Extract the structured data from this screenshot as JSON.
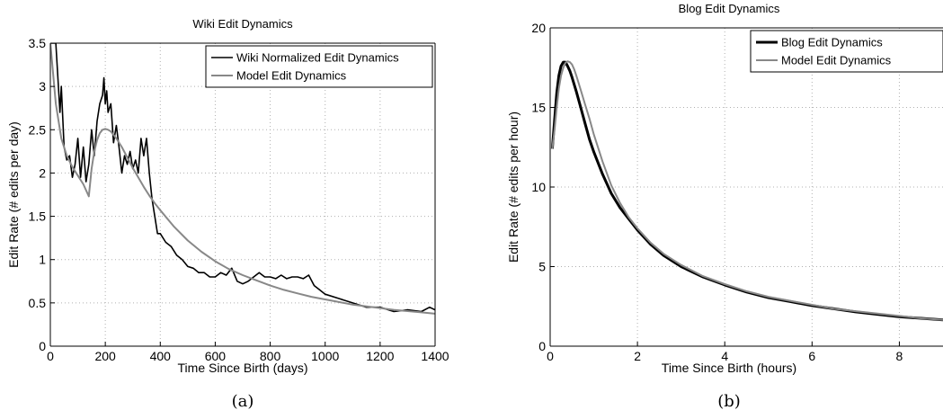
{
  "chart_data": [
    {
      "type": "line",
      "title": "Wiki Edit Dynamics",
      "xlabel": "Time Since Birth (days)",
      "ylabel": "Edit Rate (# edits per day)",
      "xlim": [
        0,
        1400
      ],
      "ylim": [
        0,
        3.5
      ],
      "xticks": [
        0,
        200,
        400,
        600,
        800,
        1000,
        1200,
        1400
      ],
      "yticks": [
        0,
        0.5,
        1,
        1.5,
        2,
        2.5,
        3,
        3.5
      ],
      "grid": true,
      "legend_position": "top-right",
      "caption": "(a)",
      "series": [
        {
          "name": "Wiki Normalized Edit Dynamics",
          "color": "#000000",
          "x": [
            0,
            20,
            35,
            40,
            50,
            60,
            70,
            80,
            90,
            100,
            110,
            120,
            130,
            140,
            150,
            160,
            170,
            180,
            190,
            195,
            200,
            205,
            210,
            220,
            230,
            240,
            250,
            260,
            270,
            280,
            290,
            300,
            310,
            320,
            330,
            340,
            350,
            360,
            370,
            380,
            390,
            400,
            420,
            440,
            460,
            480,
            500,
            520,
            540,
            560,
            580,
            600,
            620,
            640,
            660,
            680,
            700,
            720,
            740,
            760,
            780,
            800,
            820,
            840,
            860,
            880,
            900,
            920,
            940,
            960,
            980,
            1000,
            1050,
            1100,
            1150,
            1200,
            1250,
            1300,
            1350,
            1380,
            1400
          ],
          "y": [
            3.5,
            3.5,
            2.7,
            3.0,
            2.3,
            2.15,
            2.2,
            1.95,
            2.1,
            2.4,
            1.95,
            2.3,
            1.9,
            2.1,
            2.5,
            2.2,
            2.6,
            2.8,
            2.9,
            3.1,
            2.8,
            2.95,
            2.7,
            2.8,
            2.35,
            2.55,
            2.3,
            2.0,
            2.2,
            2.1,
            2.25,
            2.05,
            2.15,
            2.0,
            2.4,
            2.2,
            2.4,
            2.0,
            1.7,
            1.5,
            1.3,
            1.3,
            1.2,
            1.15,
            1.05,
            1.0,
            0.92,
            0.9,
            0.85,
            0.85,
            0.8,
            0.8,
            0.85,
            0.82,
            0.9,
            0.75,
            0.72,
            0.75,
            0.8,
            0.85,
            0.8,
            0.8,
            0.78,
            0.82,
            0.78,
            0.8,
            0.8,
            0.78,
            0.82,
            0.7,
            0.65,
            0.6,
            0.55,
            0.5,
            0.45,
            0.45,
            0.4,
            0.42,
            0.4,
            0.45,
            0.42
          ]
        },
        {
          "name": "Model Edit Dynamics",
          "color": "#888888",
          "x": [
            0,
            20,
            40,
            60,
            80,
            100,
            120,
            140,
            150,
            160,
            170,
            180,
            190,
            200,
            210,
            220,
            240,
            260,
            280,
            300,
            320,
            340,
            360,
            380,
            400,
            450,
            500,
            550,
            600,
            650,
            700,
            750,
            800,
            850,
            900,
            950,
            1000,
            1050,
            1100,
            1150,
            1200,
            1250,
            1300,
            1350,
            1400
          ],
          "y": [
            3.5,
            2.8,
            2.4,
            2.2,
            2.07,
            1.97,
            1.87,
            1.73,
            2.05,
            2.25,
            2.38,
            2.46,
            2.5,
            2.51,
            2.5,
            2.48,
            2.4,
            2.3,
            2.18,
            2.06,
            1.95,
            1.84,
            1.74,
            1.65,
            1.57,
            1.38,
            1.22,
            1.09,
            0.98,
            0.89,
            0.82,
            0.76,
            0.7,
            0.65,
            0.61,
            0.57,
            0.54,
            0.51,
            0.48,
            0.46,
            0.44,
            0.42,
            0.405,
            0.39,
            0.375
          ]
        }
      ]
    },
    {
      "type": "line",
      "title": "Blog Edit Dynamics",
      "xlabel": "Time Since Birth (hours)",
      "ylabel": "Edit Rate (# edits per hour)",
      "xlim": [
        0,
        9
      ],
      "ylim": [
        0,
        20
      ],
      "xticks": [
        0,
        2,
        4,
        6,
        8
      ],
      "yticks": [
        0,
        5,
        10,
        15,
        20
      ],
      "grid": true,
      "legend_position": "top-right",
      "caption": "(b)",
      "series": [
        {
          "name": "Blog Edit Dynamics",
          "color": "#000000",
          "x": [
            0.05,
            0.1,
            0.15,
            0.2,
            0.25,
            0.3,
            0.35,
            0.4,
            0.45,
            0.5,
            0.6,
            0.7,
            0.8,
            0.9,
            1.0,
            1.2,
            1.4,
            1.6,
            1.8,
            2.0,
            2.3,
            2.6,
            3.0,
            3.5,
            4.0,
            4.5,
            5.0,
            5.5,
            6.0,
            6.5,
            7.0,
            7.5,
            8.0,
            8.5,
            9.0
          ],
          "y": [
            12.4,
            14.2,
            15.9,
            17.0,
            17.6,
            17.85,
            17.85,
            17.6,
            17.3,
            16.9,
            16.0,
            15.0,
            14.0,
            13.0,
            12.2,
            10.8,
            9.6,
            8.7,
            8.0,
            7.3,
            6.4,
            5.7,
            5.0,
            4.35,
            3.85,
            3.4,
            3.05,
            2.8,
            2.55,
            2.35,
            2.15,
            2.0,
            1.85,
            1.75,
            1.65
          ]
        },
        {
          "name": "Model Edit Dynamics",
          "color": "#888888",
          "x": [
            0.05,
            0.1,
            0.15,
            0.2,
            0.25,
            0.3,
            0.35,
            0.4,
            0.45,
            0.5,
            0.55,
            0.6,
            0.7,
            0.8,
            0.9,
            1.0,
            1.2,
            1.4,
            1.6,
            1.8,
            2.0,
            2.3,
            2.6,
            3.0,
            3.5,
            4.0,
            4.5,
            5.0,
            5.5,
            6.0,
            6.5,
            7.0,
            7.5,
            8.0,
            8.5,
            9.0
          ],
          "y": [
            12.4,
            13.6,
            15.0,
            16.2,
            17.0,
            17.5,
            17.8,
            17.9,
            17.85,
            17.7,
            17.4,
            17.0,
            16.1,
            15.2,
            14.3,
            13.3,
            11.6,
            10.1,
            9.0,
            8.1,
            7.4,
            6.5,
            5.8,
            5.1,
            4.4,
            3.9,
            3.45,
            3.1,
            2.85,
            2.6,
            2.35,
            2.2,
            2.05,
            1.9,
            1.75,
            1.65
          ]
        }
      ]
    }
  ]
}
